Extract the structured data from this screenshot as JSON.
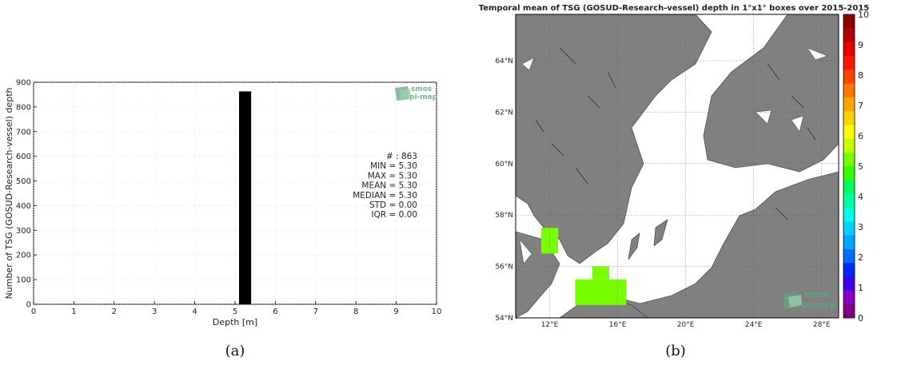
{
  "panel_a": {
    "caption": "(a)",
    "logo": "smos pi-mep",
    "stats": [
      "# : 863",
      "MIN = 5.30",
      "MAX =  5.30",
      "MEAN = 5.30",
      "MEDIAN = 5.30",
      "STD = 0.00",
      "IQR = 0.00"
    ]
  },
  "panel_b": {
    "caption": "(b)",
    "logo": "smos pi-mep"
  },
  "chart_data": [
    {
      "type": "bar",
      "xlabel": "Depth [m]",
      "ylabel": "Number of TSG (GOSUD-Research-vessel) depth",
      "xlim": [
        0,
        10
      ],
      "ylim": [
        0,
        900
      ],
      "xticks": [
        0,
        1,
        2,
        3,
        4,
        5,
        6,
        7,
        8,
        9,
        10
      ],
      "yticks": [
        0,
        100,
        200,
        300,
        400,
        500,
        600,
        700,
        800,
        900
      ],
      "grid": true,
      "bars": [
        {
          "x0": 5.1,
          "x1": 5.4,
          "value": 863
        }
      ],
      "bar_color": "#000000"
    },
    {
      "type": "heatmap",
      "title": "Temporal mean of TSG (GOSUD-Research-vessel) depth in 1°x1° boxes over 2015-2015",
      "lon_ticks": [
        "12°E",
        "16°E",
        "20°E",
        "24°E",
        "28°E"
      ],
      "lat_ticks": [
        "54°N",
        "56°N",
        "58°N",
        "60°N",
        "62°N",
        "64°N"
      ],
      "lon_values": [
        12,
        16,
        20,
        24,
        28
      ],
      "lat_values": [
        54,
        56,
        58,
        60,
        62,
        64
      ],
      "lon_range": [
        10,
        29
      ],
      "lat_range": [
        54,
        65.8
      ],
      "land_color": "#808080",
      "colorbar": {
        "min": 0,
        "max": 10,
        "ticks": [
          "0",
          "1",
          "2",
          "3",
          "4",
          "5",
          "6",
          "7",
          "8",
          "9",
          "10"
        ],
        "colors": [
          "#800080",
          "#8b00c8",
          "#3c00e6",
          "#0028ff",
          "#006eff",
          "#00a5ff",
          "#00d2ff",
          "#00ffe6",
          "#00ffa0",
          "#00ff5a",
          "#32ff00",
          "#78ff00",
          "#c8ff00",
          "#ffff00",
          "#ffd200",
          "#ffa500",
          "#ff7800",
          "#ff4600",
          "#ff1400",
          "#e60000",
          "#b40000",
          "#8c0000"
        ]
      },
      "cells": [
        {
          "lon": [
            11.5,
            12.5
          ],
          "lat": [
            56.5,
            57.5
          ],
          "value": 5.3
        },
        {
          "lon": [
            13.5,
            15.5
          ],
          "lat": [
            54.5,
            55.5
          ],
          "value": 5.3
        },
        {
          "lon": [
            14.5,
            15.5
          ],
          "lat": [
            55.5,
            56.0
          ],
          "value": 5.3
        },
        {
          "lon": [
            15.5,
            16.5
          ],
          "lat": [
            54.5,
            55.5
          ],
          "value": 5.3
        }
      ]
    }
  ]
}
